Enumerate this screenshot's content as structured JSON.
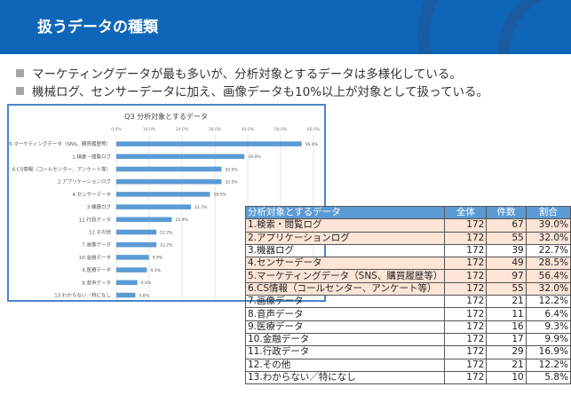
{
  "header": {
    "title": "扱うデータの種類",
    "bg_color": "#0f66b8"
  },
  "bullets": [
    "マーケティングデータが最も多いが、分析対象とするデータは多様化している。",
    "機械ログ、センサーデータに加え、画像データも10%以上が対象として扱っている。"
  ],
  "chart_data": {
    "type": "bar",
    "orientation": "horizontal",
    "title": "Q3 分析対象とするデータ",
    "categories": [
      "5.マーケティングデータ（SNS、購買履歴等）",
      "1.検索・閲覧ログ",
      "6.CS情報（コールセンター、アンケート等）",
      "2.アプリケーションログ",
      "4.センサーデータ",
      "3.機器ログ",
      "11.行政データ",
      "12.その他",
      "7.画像データ",
      "10.金融データ",
      "9.医療データ",
      "8.音声データ",
      "13.わからない／特になし"
    ],
    "values": [
      56.4,
      39.0,
      32.0,
      32.0,
      28.5,
      22.7,
      16.9,
      12.2,
      12.2,
      9.9,
      9.3,
      6.4,
      5.8
    ],
    "data_labels": [
      "56.4%",
      "39.0%",
      "32.0%",
      "32.0%",
      "28.5%",
      "22.7%",
      "16.9%",
      "12.2%",
      "12.2%",
      "9.9%",
      "9.3%",
      "6.4%",
      "5.8%"
    ],
    "xlim": [
      0,
      60
    ],
    "ticks": [
      "0.0%",
      "10.0%",
      "20.0%",
      "30.0%",
      "40.0%",
      "50.0%",
      "60.0%"
    ],
    "grid": true,
    "bar_color": "#5b9bd5"
  },
  "table": {
    "headers": [
      "分析対象とするデータ",
      "全体",
      "件数",
      "割合"
    ],
    "rows": [
      {
        "label": "1.検索・閲覧ログ",
        "total": "172",
        "count": "67",
        "ratio": "39.0%",
        "highlight": true
      },
      {
        "label": "2.アプリケーションログ",
        "total": "172",
        "count": "55",
        "ratio": "32.0%",
        "highlight": true
      },
      {
        "label": "3.機器ログ",
        "total": "172",
        "count": "39",
        "ratio": "22.7%",
        "highlight": false
      },
      {
        "label": "4.センサーデータ",
        "total": "172",
        "count": "49",
        "ratio": "28.5%",
        "highlight": true
      },
      {
        "label": "5.マーケティングデータ（SNS、購買履歴等）",
        "total": "172",
        "count": "97",
        "ratio": "56.4%",
        "highlight": true
      },
      {
        "label": "6.CS情報（コールセンター、アンケート等）",
        "total": "172",
        "count": "55",
        "ratio": "32.0%",
        "highlight": true
      },
      {
        "label": "7.画像データ",
        "total": "172",
        "count": "21",
        "ratio": "12.2%",
        "highlight": false
      },
      {
        "label": "8.音声データ",
        "total": "172",
        "count": "11",
        "ratio": "6.4%",
        "highlight": false
      },
      {
        "label": "9.医療データ",
        "total": "172",
        "count": "16",
        "ratio": "9.3%",
        "highlight": false
      },
      {
        "label": "10.金融データ",
        "total": "172",
        "count": "17",
        "ratio": "9.9%",
        "highlight": false
      },
      {
        "label": "11.行政データ",
        "total": "172",
        "count": "29",
        "ratio": "16.9%",
        "highlight": false
      },
      {
        "label": "12.その他",
        "total": "172",
        "count": "21",
        "ratio": "12.2%",
        "highlight": false
      },
      {
        "label": "13.わからない／特になし",
        "total": "172",
        "count": "10",
        "ratio": "5.8%",
        "highlight": false
      }
    ]
  }
}
